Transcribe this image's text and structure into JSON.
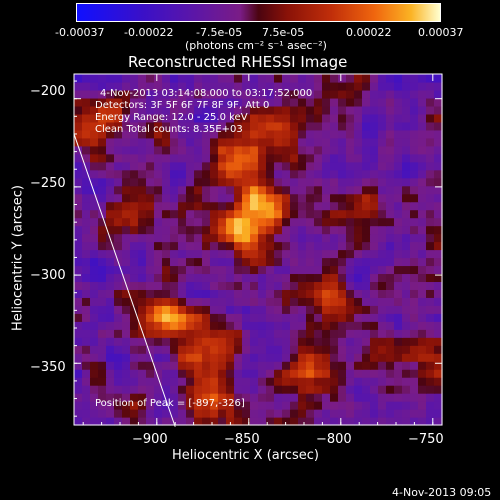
{
  "colorbar": {
    "ticks": [
      "-0.00037",
      "-0.00022",
      "-7.5e-05",
      "7.5e-05",
      "0.00022",
      "0.00037"
    ],
    "unit_label": "(photons cm⁻² s⁻¹ asec⁻²)"
  },
  "chart_data": {
    "type": "heatmap",
    "title": "Reconstructed RHESSI Image",
    "xlabel": "Heliocentric X (arcsec)",
    "ylabel": "Heliocentric Y (arcsec)",
    "xlim": [
      -945,
      -745
    ],
    "ylim": [
      -385,
      -186
    ],
    "xticks": [
      -900,
      -850,
      -800,
      -750
    ],
    "xtick_labels": [
      "−900",
      "−850",
      "−800",
      "−750"
    ],
    "yticks": [
      -200,
      -250,
      -300,
      -350
    ],
    "ytick_labels": [
      "−200",
      "−250",
      "−300",
      "−350"
    ],
    "color_range": [
      -0.00037,
      0.00037
    ],
    "limb_line": [
      [
        -945,
        -220
      ],
      [
        -890,
        -386
      ]
    ],
    "peak": [
      -897,
      -326
    ],
    "bright_regions": [
      {
        "x": -855,
        "y": -238,
        "v": 0.00032
      },
      {
        "x": -840,
        "y": -262,
        "v": 0.00036
      },
      {
        "x": -855,
        "y": -275,
        "v": 0.00034
      },
      {
        "x": -808,
        "y": -310,
        "v": 0.00035
      },
      {
        "x": -895,
        "y": -325,
        "v": 0.00037
      },
      {
        "x": -873,
        "y": -342,
        "v": 0.00028
      },
      {
        "x": -873,
        "y": -372,
        "v": 0.00024
      },
      {
        "x": -820,
        "y": -355,
        "v": 0.00026
      },
      {
        "x": -932,
        "y": -212,
        "v": 0.00022
      },
      {
        "x": -912,
        "y": -262,
        "v": 0.00018
      },
      {
        "x": -835,
        "y": -215,
        "v": 0.0002
      },
      {
        "x": -790,
        "y": -265,
        "v": 0.00016
      },
      {
        "x": -760,
        "y": -345,
        "v": 0.00012
      }
    ],
    "annotations": {
      "time": "4-Nov-2013 03:14:08.000 to 03:17:52.000",
      "detectors": "Detectors: 3F 5F 6F 7F 8F 9F, Att 0",
      "energy": "Energy Range: 12.0 - 25.0 keV",
      "clean": "Clean    Total counts: 8.35E+03",
      "peak_text": "Position of Peak = [-897,-326]"
    }
  },
  "footer_timestamp": "4-Nov-2013 09:05"
}
